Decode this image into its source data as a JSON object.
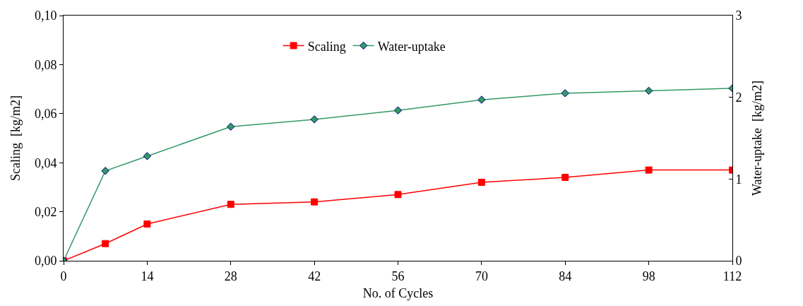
{
  "chart_data": {
    "type": "line",
    "x": [
      0,
      7,
      14,
      28,
      42,
      56,
      70,
      84,
      98,
      112
    ],
    "series": [
      {
        "name": "Scaling",
        "color": "#ff0000",
        "marker": "square",
        "values": [
          0.0,
          0.007,
          0.015,
          0.023,
          0.024,
          0.027,
          0.032,
          0.034,
          0.037,
          0.037
        ]
      },
      {
        "name": "Water-uptake",
        "color": "#339966",
        "marker": "diamond",
        "axis": "y2",
        "values": [
          0.0,
          1.1,
          1.28,
          1.64,
          1.73,
          1.84,
          1.97,
          2.05,
          2.08,
          2.11
        ]
      }
    ],
    "xlabel": "No. of Cycles",
    "ylabel": "Scaling  [kg/m2]",
    "y2label": "Water-uptake  [kg/m2]",
    "xlim": [
      0,
      112
    ],
    "xticks": [
      0,
      14,
      28,
      42,
      56,
      70,
      84,
      98,
      112
    ],
    "ylim": [
      0,
      0.1
    ],
    "yticks": [
      {
        "value": 0,
        "label": "0,00"
      },
      {
        "value": 0.02,
        "label": "0,02"
      },
      {
        "value": 0.04,
        "label": "0,04"
      },
      {
        "value": 0.06,
        "label": "0,06"
      },
      {
        "value": 0.08,
        "label": "0,08"
      },
      {
        "value": 0.1,
        "label": "0,10"
      }
    ],
    "y2lim": [
      0,
      3
    ],
    "y2ticks": [
      0,
      1,
      2,
      3
    ],
    "legend": "top",
    "line_style": "solid"
  }
}
